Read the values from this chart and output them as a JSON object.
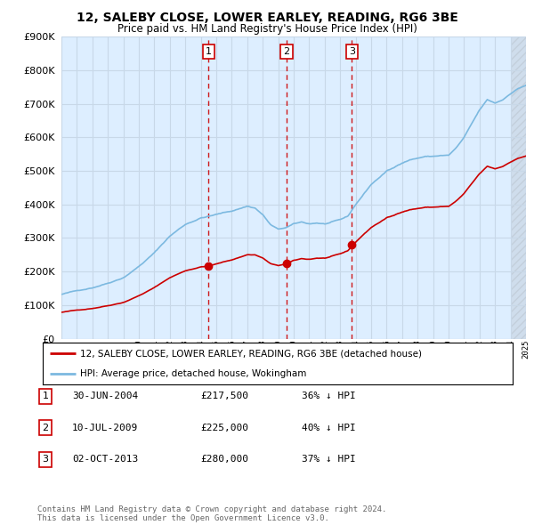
{
  "title": "12, SALEBY CLOSE, LOWER EARLEY, READING, RG6 3BE",
  "subtitle": "Price paid vs. HM Land Registry's House Price Index (HPI)",
  "hpi_label": "HPI: Average price, detached house, Wokingham",
  "property_label": "12, SALEBY CLOSE, LOWER EARLEY, READING, RG6 3BE (detached house)",
  "ylim": [
    0,
    900000
  ],
  "yticks": [
    0,
    100000,
    200000,
    300000,
    400000,
    500000,
    600000,
    700000,
    800000,
    900000
  ],
  "hpi_color": "#7cb9e0",
  "property_color": "#cc0000",
  "vline_color": "#cc0000",
  "transaction_dates": [
    2004.5,
    2009.54,
    2013.75
  ],
  "transaction_labels": [
    "1",
    "2",
    "3"
  ],
  "transaction_prices": [
    217500,
    225000,
    280000
  ],
  "table_rows": [
    [
      "1",
      "30-JUN-2004",
      "£217,500",
      "36% ↓ HPI"
    ],
    [
      "2",
      "10-JUL-2009",
      "£225,000",
      "40% ↓ HPI"
    ],
    [
      "3",
      "02-OCT-2013",
      "£280,000",
      "37% ↓ HPI"
    ]
  ],
  "footer": "Contains HM Land Registry data © Crown copyright and database right 2024.\nThis data is licensed under the Open Government Licence v3.0.",
  "background_color": "#ffffff",
  "grid_color": "#c8d8e8",
  "plot_bg_color": "#ddeeff"
}
